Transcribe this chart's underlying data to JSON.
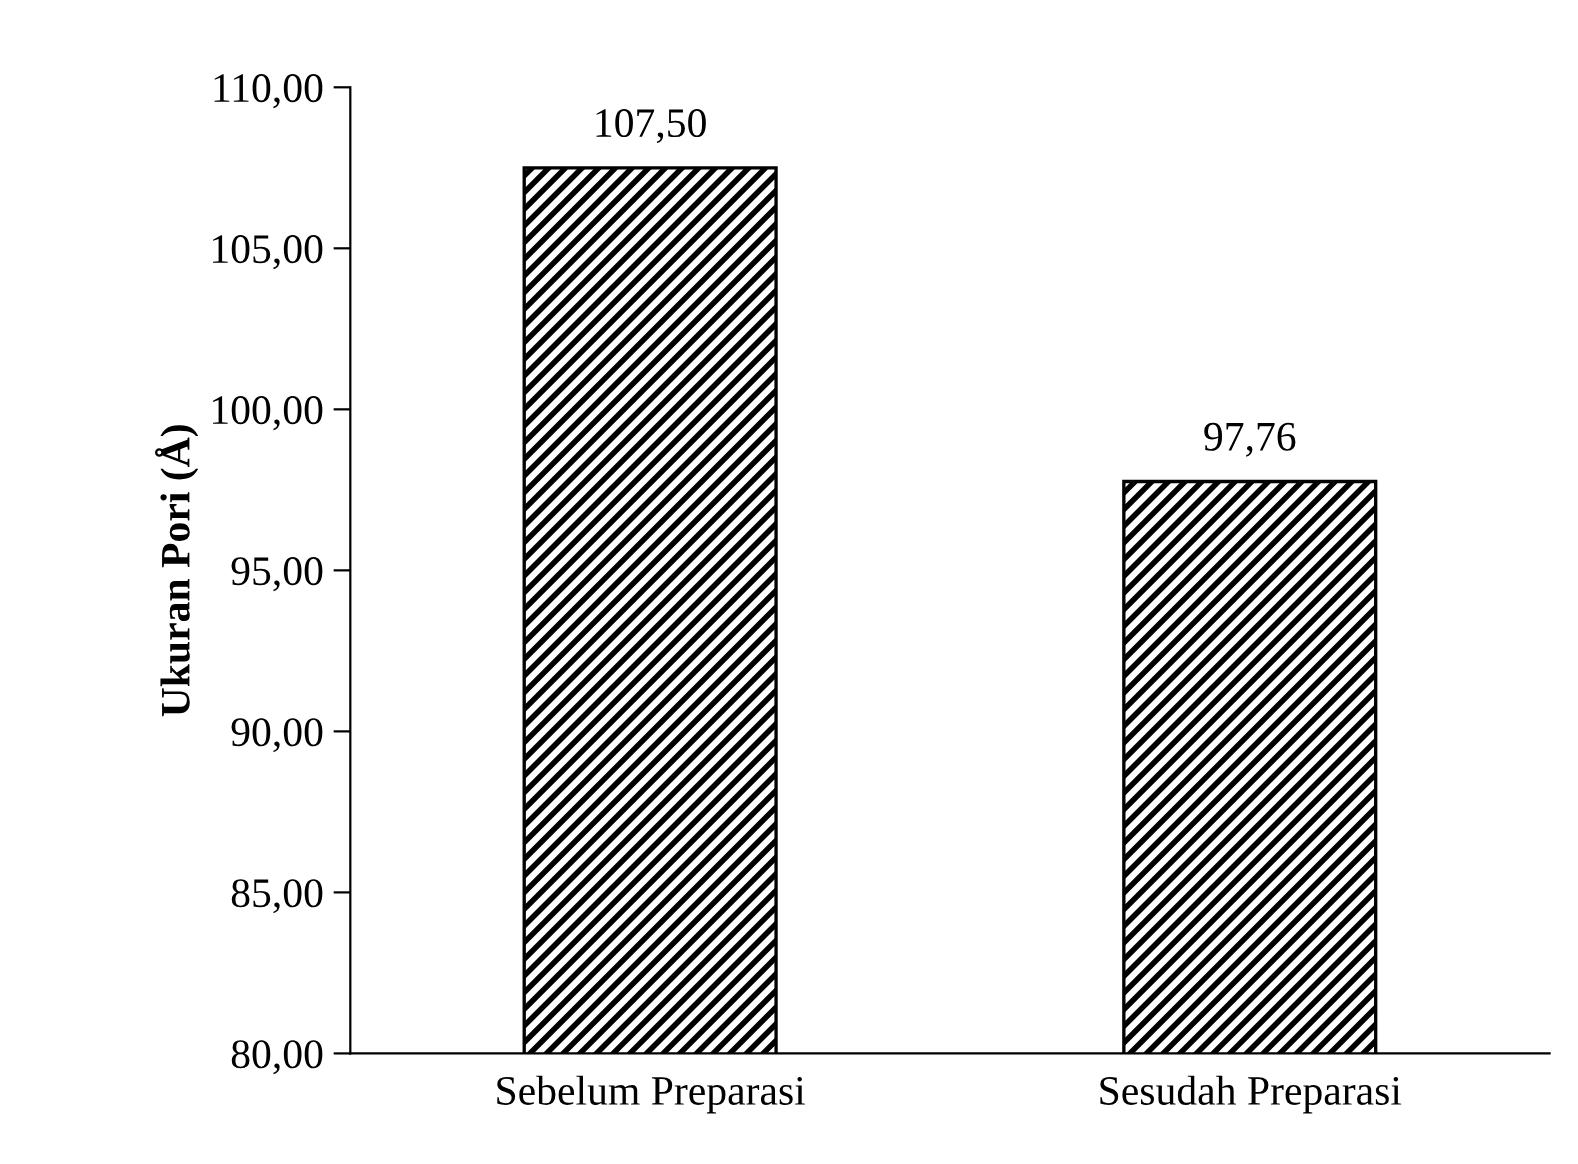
{
  "chart_data": {
    "type": "bar",
    "ylabel": "Ukuran Pori (Å)",
    "categories": [
      "Sebelum Preparasi",
      "Sesudah Preparasi"
    ],
    "values": [
      107.5,
      97.76
    ],
    "value_labels": [
      "107,50",
      "97,76"
    ],
    "color": "#000000",
    "ylim": [
      80,
      110
    ],
    "yticks": [
      {
        "value": 80,
        "label": "80,00"
      },
      {
        "value": 85,
        "label": "85,00"
      },
      {
        "value": 90,
        "label": "90,00"
      },
      {
        "value": 95,
        "label": "95,00"
      },
      {
        "value": 100,
        "label": "100,00"
      },
      {
        "value": 105,
        "label": "105,00"
      },
      {
        "value": 110,
        "label": "110,00"
      }
    ],
    "grid": false,
    "legend": false
  }
}
